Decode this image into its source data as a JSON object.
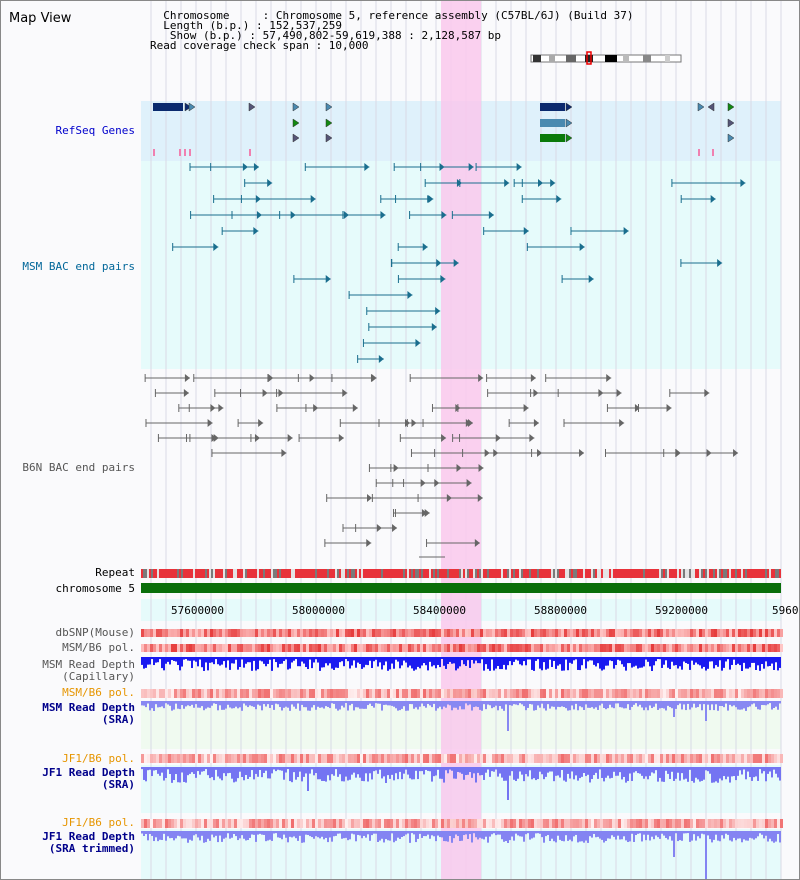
{
  "header": {
    "title": "Map View",
    "info_lines": [
      "  Chromosome     : Chromosome 5, reference assembly (C57BL/6J) (Build 37)",
      "  Length (b.p.) : 152,537,259",
      "   Show (b.p.) : 57,490,802-59,619,388 : 2,128,587 bp",
      "Read coverage check span : 10,000"
    ]
  },
  "tracks": {
    "refseq": "RefSeq Genes",
    "msm_bac": "MSM BAC end pairs",
    "b6n_bac": "B6N BAC end pairs",
    "repeat": "Repeat",
    "chromosome": "chromosome 5"
  },
  "axis": {
    "ticks": [
      "57600000",
      "58000000",
      "58400000",
      "58800000",
      "59200000",
      "5960"
    ]
  },
  "lower_tracks": {
    "dbsnp": "dbSNP(Mouse)",
    "msm_b6_pol": "MSM/B6 pol.",
    "msm_depth_cap_1": "MSM Read Depth",
    "msm_depth_cap_2": "(Capillary)",
    "msm_b6_pol_2": "MSM/B6 pol.",
    "msm_depth_sra_1": "MSM Read Depth",
    "msm_depth_sra_2": "(SRA)",
    "jf1_b6_pol": "JF1/B6 pol.",
    "jf1_depth_sra_1": "JF1 Read Depth",
    "jf1_depth_sra_2": "(SRA)",
    "jf1_b6_pol_2": "JF1/B6 pol.",
    "jf1_depth_trim_1": "JF1 Read Depth",
    "jf1_depth_trim_2": "(SRA trimmed)"
  },
  "colors": {
    "refseq_label": "#0000cc",
    "msm_bac_label": "#006699",
    "b6n_label": "#555555",
    "orange_label": "#e69500",
    "blue_label": "#00008b",
    "highlight": "#f9c8ec",
    "depth_dark": "#1a1af0",
    "depth_light": "#7f7ff5"
  }
}
